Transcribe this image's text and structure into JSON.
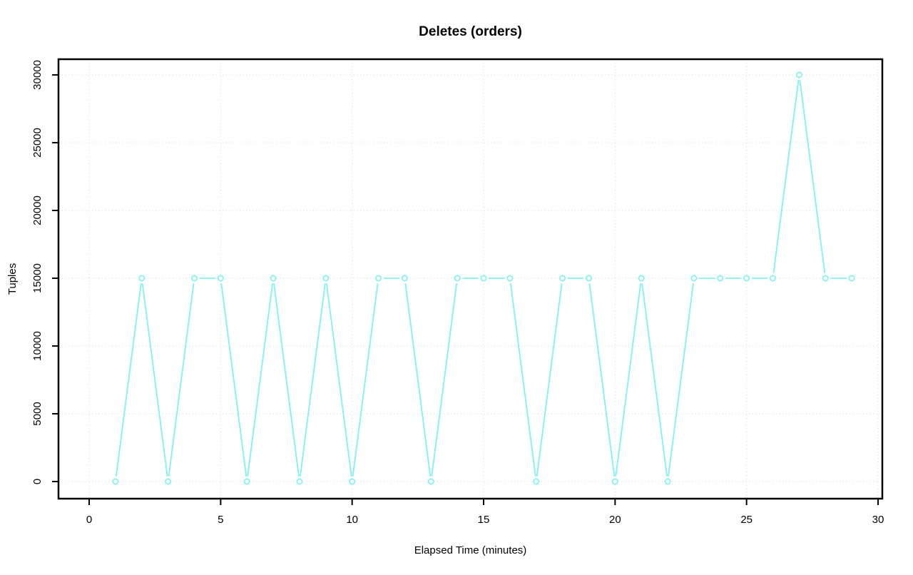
{
  "chart_data": {
    "type": "line",
    "title": "Deletes (orders)",
    "xlabel": "Elapsed Time (minutes)",
    "ylabel": "Tuples",
    "x": [
      1,
      2,
      3,
      4,
      5,
      6,
      7,
      8,
      9,
      10,
      11,
      12,
      13,
      14,
      15,
      16,
      17,
      18,
      19,
      20,
      21,
      22,
      23,
      24,
      25,
      26,
      27,
      28,
      29
    ],
    "y": [
      0,
      15000,
      0,
      15000,
      15000,
      0,
      15000,
      0,
      15000,
      0,
      15000,
      15000,
      0,
      15000,
      15000,
      15000,
      0,
      15000,
      15000,
      0,
      15000,
      0,
      15000,
      15000,
      15000,
      15000,
      30000,
      15000,
      15000
    ],
    "xlim": [
      0,
      30
    ],
    "ylim": [
      0,
      30000
    ],
    "xticks": [
      0,
      5,
      10,
      15,
      20,
      25,
      30
    ],
    "yticks": [
      0,
      5000,
      10000,
      15000,
      20000,
      25000,
      30000
    ],
    "xtick_labels": [
      "0",
      "5",
      "10",
      "15",
      "20",
      "25",
      "30"
    ],
    "ytick_labels": [
      "0",
      "5000",
      "10000",
      "15000",
      "20000",
      "25000",
      "30000"
    ],
    "grid": true,
    "grid_style": "dotted",
    "legend": "none",
    "marker": "open-circle",
    "line_style": "points-and-lines",
    "colors": {
      "series": "#7FF2F2",
      "grid": "#D3D3D3",
      "axis": "#000000",
      "background": "#FFFFFF"
    }
  }
}
